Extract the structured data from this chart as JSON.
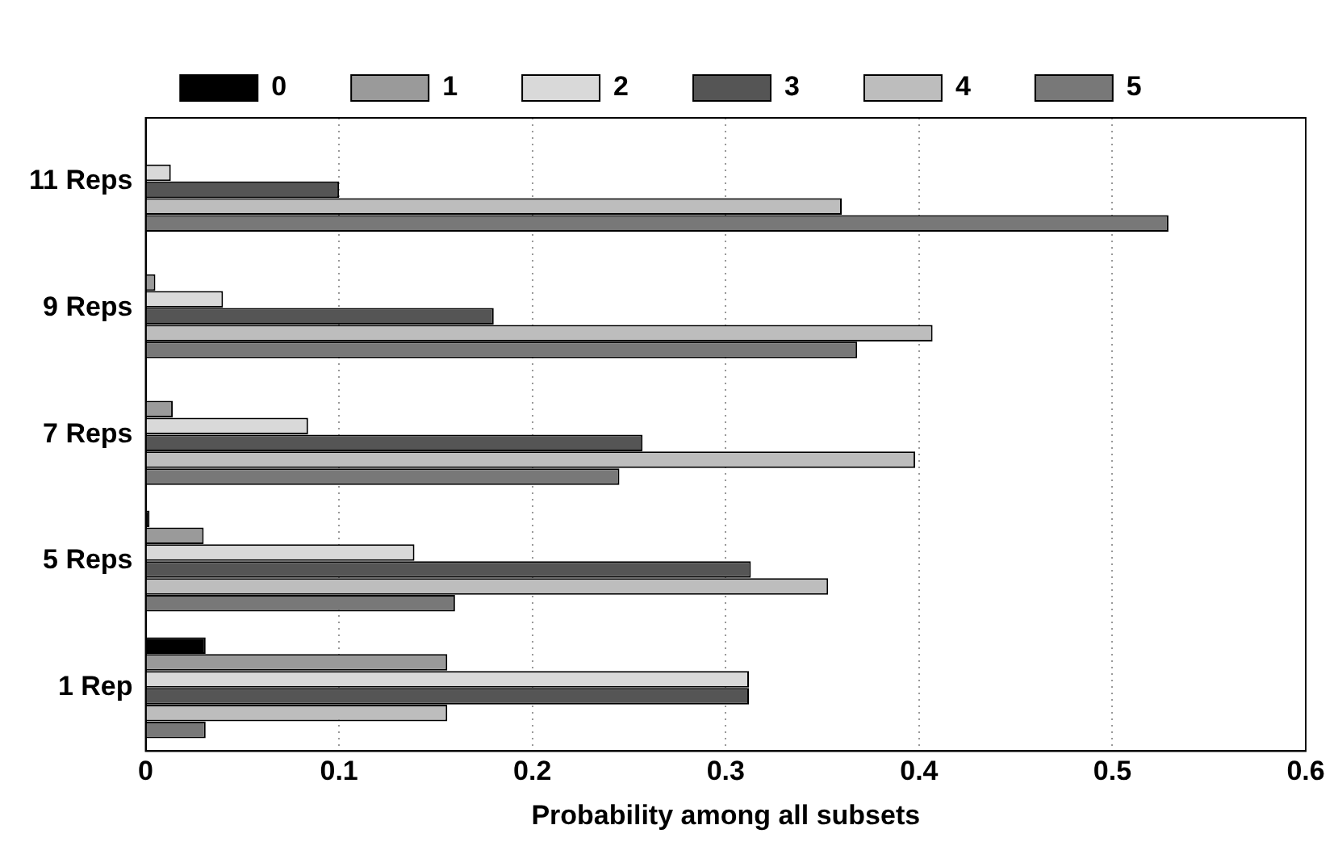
{
  "chart_data": {
    "type": "bar",
    "orientation": "horizontal",
    "xlabel": "Probability among all subsets",
    "categories": [
      "11 Reps",
      "9 Reps",
      "7 Reps",
      "5 Reps",
      "1 Rep"
    ],
    "series": [
      {
        "name": "0",
        "color": "#000000",
        "values": [
          0,
          0,
          0,
          0.002,
          0.031
        ]
      },
      {
        "name": "1",
        "color": "#9a9a9a",
        "values": [
          0,
          0.005,
          0.014,
          0.03,
          0.156
        ]
      },
      {
        "name": "2",
        "color": "#d9d9d9",
        "values": [
          0.013,
          0.04,
          0.084,
          0.139,
          0.312
        ]
      },
      {
        "name": "3",
        "color": "#555555",
        "values": [
          0.1,
          0.18,
          0.257,
          0.313,
          0.312
        ]
      },
      {
        "name": "4",
        "color": "#bdbdbd",
        "values": [
          0.36,
          0.407,
          0.398,
          0.353,
          0.156
        ]
      },
      {
        "name": "5",
        "color": "#787878",
        "values": [
          0.529,
          0.368,
          0.245,
          0.16,
          0.031
        ]
      }
    ],
    "xlim": [
      0,
      0.6
    ],
    "xticks": [
      0,
      0.1,
      0.2,
      0.3,
      0.4,
      0.5,
      0.6
    ],
    "grid": "x",
    "legend": "top"
  }
}
